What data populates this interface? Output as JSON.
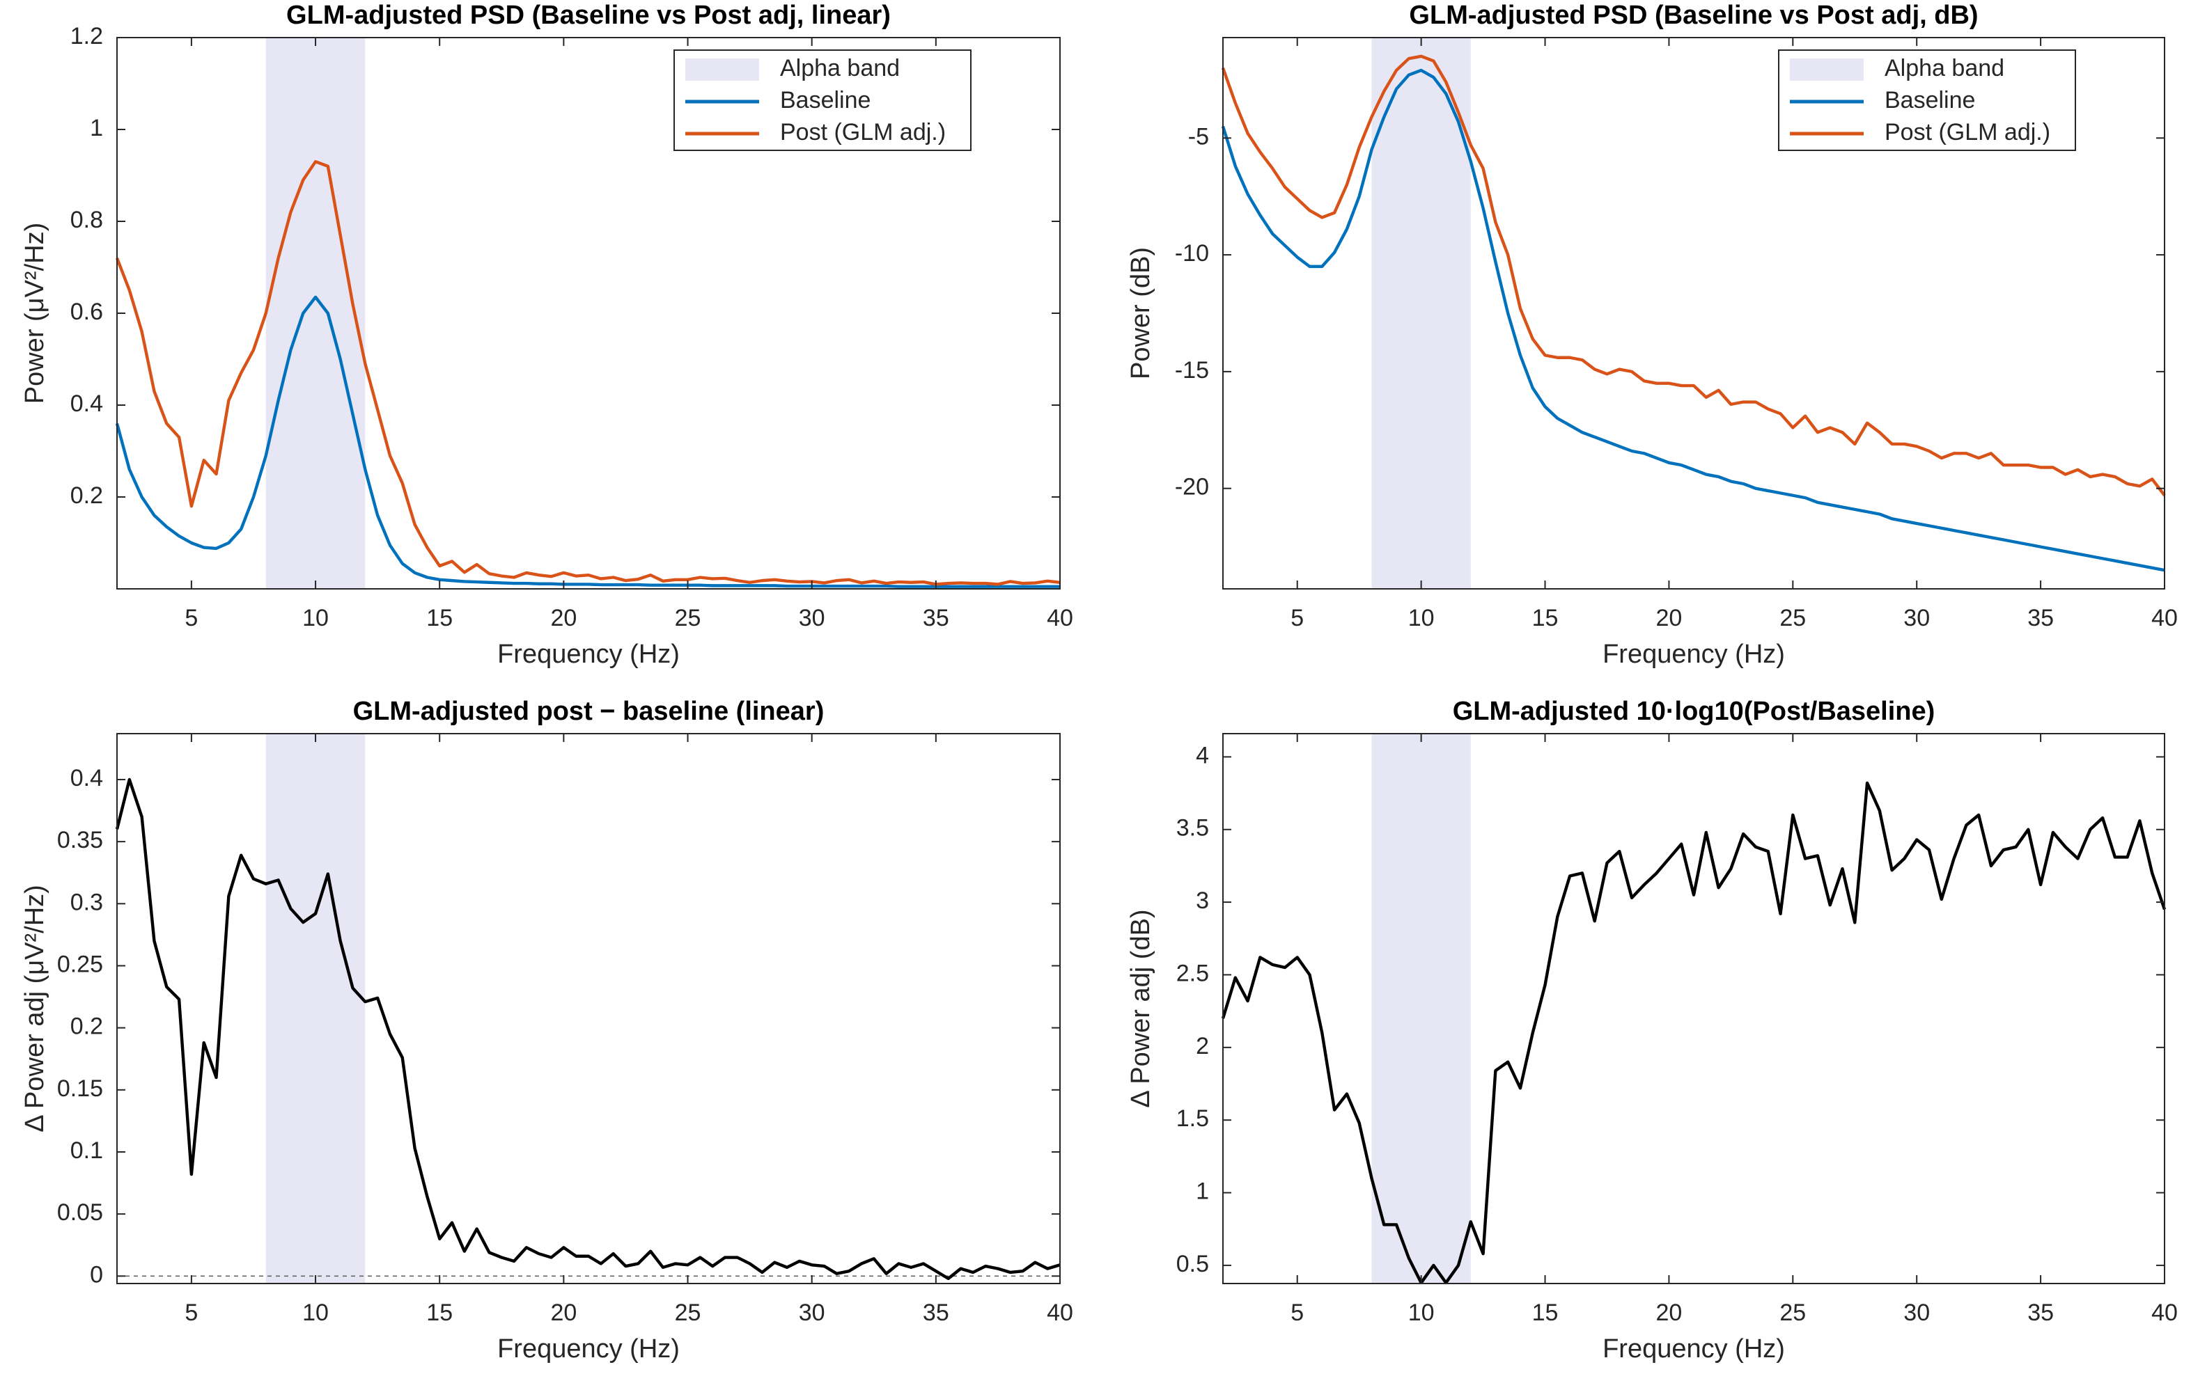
{
  "chart_data": [
    {
      "type": "line",
      "title": "GLM-adjusted PSD (Baseline vs Post adj, linear)",
      "xlabel": "Frequency (Hz)",
      "ylabel": "Power  (μV²/Hz)",
      "x": [
        2,
        2.5,
        3,
        3.5,
        4,
        4.5,
        5,
        5.5,
        6,
        6.5,
        7,
        7.5,
        8,
        8.5,
        9,
        9.5,
        10,
        10.5,
        11,
        11.5,
        12,
        12.5,
        13,
        13.5,
        14,
        14.5,
        15,
        15.5,
        16,
        16.5,
        17,
        17.5,
        18,
        18.5,
        19,
        19.5,
        20,
        20.5,
        21,
        21.5,
        22,
        22.5,
        23,
        23.5,
        24,
        24.5,
        25,
        25.5,
        26,
        26.5,
        27,
        27.5,
        28,
        28.5,
        29,
        29.5,
        30,
        30.5,
        31,
        31.5,
        32,
        32.5,
        33,
        33.5,
        34,
        34.5,
        35,
        35.5,
        36,
        36.5,
        37,
        37.5,
        38,
        38.5,
        39,
        39.5,
        40
      ],
      "series": [
        {
          "name": "Baseline",
          "color": "#0072bd",
          "values": [
            0.36,
            0.26,
            0.2,
            0.16,
            0.135,
            0.115,
            0.1,
            0.09,
            0.088,
            0.1,
            0.13,
            0.2,
            0.29,
            0.41,
            0.52,
            0.6,
            0.635,
            0.6,
            0.5,
            0.38,
            0.26,
            0.16,
            0.095,
            0.055,
            0.035,
            0.025,
            0.02,
            0.018,
            0.016,
            0.015,
            0.014,
            0.013,
            0.012,
            0.012,
            0.011,
            0.011,
            0.01,
            0.01,
            0.01,
            0.009,
            0.009,
            0.009,
            0.009,
            0.008,
            0.008,
            0.008,
            0.008,
            0.008,
            0.007,
            0.007,
            0.007,
            0.007,
            0.007,
            0.007,
            0.006,
            0.006,
            0.006,
            0.006,
            0.006,
            0.006,
            0.006,
            0.006,
            0.006,
            0.005,
            0.005,
            0.005,
            0.005,
            0.005,
            0.005,
            0.005,
            0.005,
            0.005,
            0.005,
            0.005,
            0.005,
            0.005,
            0.005
          ]
        },
        {
          "name": "Post (GLM adj.)",
          "color": "#d95319",
          "values": [
            0.72,
            0.65,
            0.56,
            0.43,
            0.36,
            0.33,
            0.18,
            0.28,
            0.25,
            0.41,
            0.47,
            0.52,
            0.6,
            0.72,
            0.82,
            0.89,
            0.93,
            0.92,
            0.77,
            0.62,
            0.49,
            0.39,
            0.29,
            0.23,
            0.14,
            0.09,
            0.05,
            0.06,
            0.036,
            0.053,
            0.033,
            0.028,
            0.025,
            0.035,
            0.03,
            0.027,
            0.035,
            0.028,
            0.03,
            0.022,
            0.025,
            0.018,
            0.021,
            0.03,
            0.017,
            0.02,
            0.02,
            0.025,
            0.022,
            0.023,
            0.018,
            0.014,
            0.018,
            0.02,
            0.017,
            0.015,
            0.016,
            0.013,
            0.018,
            0.02,
            0.013,
            0.017,
            0.012,
            0.015,
            0.014,
            0.015,
            0.01,
            0.012,
            0.013,
            0.012,
            0.012,
            0.01,
            0.016,
            0.012,
            0.013,
            0.017,
            0.014
          ]
        }
      ],
      "band": {
        "name": "Alpha band",
        "range": [
          8,
          12
        ],
        "color": "#e6e6f5"
      },
      "xlim": [
        2,
        40
      ],
      "xticks": [
        5,
        10,
        15,
        20,
        25,
        30,
        35,
        40
      ],
      "ylim": [
        0,
        1.2
      ],
      "yticks": [
        0.2,
        0.4,
        0.6,
        0.8,
        1,
        1.2
      ],
      "legend": "upper right"
    },
    {
      "type": "line",
      "title": "GLM-adjusted PSD (Baseline vs Post adj, dB)",
      "xlabel": "Frequency (Hz)",
      "ylabel": "Power (dB)",
      "x": [
        2,
        2.5,
        3,
        3.5,
        4,
        4.5,
        5,
        5.5,
        6,
        6.5,
        7,
        7.5,
        8,
        8.5,
        9,
        9.5,
        10,
        10.5,
        11,
        11.5,
        12,
        12.5,
        13,
        13.5,
        14,
        14.5,
        15,
        15.5,
        16,
        16.5,
        17,
        17.5,
        18,
        18.5,
        19,
        19.5,
        20,
        20.5,
        21,
        21.5,
        22,
        22.5,
        23,
        23.5,
        24,
        24.5,
        25,
        25.5,
        26,
        26.5,
        27,
        27.5,
        28,
        28.5,
        29,
        29.5,
        30,
        30.5,
        31,
        31.5,
        32,
        32.5,
        33,
        33.5,
        34,
        34.5,
        35,
        35.5,
        36,
        36.5,
        37,
        37.5,
        38,
        38.5,
        39,
        39.5,
        40
      ],
      "series": [
        {
          "name": "Baseline",
          "color": "#0072bd",
          "values": [
            -4.5,
            -6.2,
            -7.4,
            -8.3,
            -9.1,
            -9.6,
            -10.1,
            -10.5,
            -10.5,
            -9.9,
            -8.9,
            -7.5,
            -5.5,
            -4.1,
            -2.9,
            -2.3,
            -2.1,
            -2.4,
            -3.1,
            -4.3,
            -6,
            -8,
            -10.3,
            -12.5,
            -14.3,
            -15.7,
            -16.5,
            -17,
            -17.3,
            -17.6,
            -17.8,
            -18,
            -18.2,
            -18.4,
            -18.5,
            -18.7,
            -18.9,
            -19,
            -19.2,
            -19.4,
            -19.5,
            -19.7,
            -19.8,
            -20,
            -20.1,
            -20.2,
            -20.3,
            -20.4,
            -20.6,
            -20.7,
            -20.8,
            -20.9,
            -21,
            -21.1,
            -21.3,
            -21.4,
            -21.5,
            -21.6,
            -21.7,
            -21.8,
            -21.9,
            -22,
            -22.1,
            -22.2,
            -22.3,
            -22.4,
            -22.5,
            -22.6,
            -22.7,
            -22.8,
            -22.9,
            -23,
            -23.1,
            -23.2,
            -23.3,
            -23.4,
            -23.5
          ]
        },
        {
          "name": "Post (GLM adj.)",
          "color": "#d95319",
          "values": [
            -2,
            -3.5,
            -4.8,
            -5.6,
            -6.3,
            -7.1,
            -7.6,
            -8.1,
            -8.4,
            -8.2,
            -7,
            -5.4,
            -4.1,
            -3,
            -2.1,
            -1.6,
            -1.5,
            -1.7,
            -2.6,
            -3.9,
            -5.3,
            -6.3,
            -8.6,
            -10,
            -12.3,
            -13.6,
            -14.3,
            -14.4,
            -14.4,
            -14.5,
            -14.9,
            -15.1,
            -14.9,
            -15,
            -15.4,
            -15.5,
            -15.5,
            -15.6,
            -15.6,
            -16.1,
            -15.8,
            -16.4,
            -16.3,
            -16.3,
            -16.6,
            -16.8,
            -17.4,
            -16.9,
            -17.6,
            -17.4,
            -17.6,
            -18.1,
            -17.2,
            -17.6,
            -18.1,
            -18.1,
            -18.2,
            -18.4,
            -18.7,
            -18.5,
            -18.5,
            -18.7,
            -18.5,
            -19,
            -19,
            -19,
            -19.1,
            -19.1,
            -19.4,
            -19.2,
            -19.5,
            -19.4,
            -19.5,
            -19.8,
            -19.9,
            -19.6,
            -20.3
          ]
        }
      ],
      "band": {
        "name": "Alpha band",
        "range": [
          8,
          12
        ],
        "color": "#e6e6f5"
      },
      "xlim": [
        2,
        40
      ],
      "xticks": [
        5,
        10,
        15,
        20,
        25,
        30,
        35,
        40
      ],
      "ylim": [
        -24.3,
        -0.7
      ],
      "yticks": [
        -20,
        -15,
        -10,
        -5
      ],
      "legend": "upper right"
    },
    {
      "type": "line",
      "title": "GLM-adjusted post − baseline (linear)",
      "xlabel": "Frequency (Hz)",
      "ylabel": "Δ  Power  adj  (μV²/Hz)",
      "x": [
        2,
        2.5,
        3,
        3.5,
        4,
        4.5,
        5,
        5.5,
        6,
        6.5,
        7,
        7.5,
        8,
        8.5,
        9,
        9.5,
        10,
        10.5,
        11,
        11.5,
        12,
        12.5,
        13,
        13.5,
        14,
        14.5,
        15,
        15.5,
        16,
        16.5,
        17,
        17.5,
        18,
        18.5,
        19,
        19.5,
        20,
        20.5,
        21,
        21.5,
        22,
        22.5,
        23,
        23.5,
        24,
        24.5,
        25,
        25.5,
        26,
        26.5,
        27,
        27.5,
        28,
        28.5,
        29,
        29.5,
        30,
        30.5,
        31,
        31.5,
        32,
        32.5,
        33,
        33.5,
        34,
        34.5,
        35,
        35.5,
        36,
        36.5,
        37,
        37.5,
        38,
        38.5,
        39,
        39.5,
        40
      ],
      "series": [
        {
          "color": "#000000",
          "values": [
            0.36,
            0.4,
            0.37,
            0.27,
            0.233,
            0.223,
            0.082,
            0.188,
            0.16,
            0.306,
            0.339,
            0.32,
            0.316,
            0.319,
            0.296,
            0.285,
            0.292,
            0.324,
            0.27,
            0.232,
            0.221,
            0.224,
            0.195,
            0.176,
            0.103,
            0.064,
            0.03,
            0.043,
            0.02,
            0.038,
            0.019,
            0.015,
            0.012,
            0.023,
            0.018,
            0.015,
            0.023,
            0.016,
            0.016,
            0.01,
            0.018,
            0.008,
            0.01,
            0.02,
            0.007,
            0.01,
            0.009,
            0.015,
            0.008,
            0.015,
            0.015,
            0.01,
            0.003,
            0.011,
            0.007,
            0.012,
            0.009,
            0.008,
            0.002,
            0.004,
            0.01,
            0.014,
            0.002,
            0.01,
            0.007,
            0.01,
            0.004,
            -0.002,
            0.006,
            0.003,
            0.008,
            0.006,
            0.003,
            0.004,
            0.011,
            0.006,
            0.009
          ]
        }
      ],
      "band": {
        "range": [
          8,
          12
        ],
        "color": "#e6e6f5"
      },
      "hline": 0,
      "xlim": [
        2,
        40
      ],
      "xticks": [
        5,
        10,
        15,
        20,
        25,
        30,
        35,
        40
      ],
      "ylim": [
        -0.006,
        0.437
      ],
      "yticks": [
        0,
        0.05,
        0.1,
        0.15,
        0.2,
        0.25,
        0.3,
        0.35,
        0.4
      ]
    },
    {
      "type": "line",
      "title": "GLM-adjusted 10·log10(Post/Baseline)",
      "xlabel": "Frequency (Hz)",
      "ylabel": "Δ  Power  adj  (dB)",
      "x": [
        2,
        2.5,
        3,
        3.5,
        4,
        4.5,
        5,
        5.5,
        6,
        6.5,
        7,
        7.5,
        8,
        8.5,
        9,
        9.5,
        10,
        10.5,
        11,
        11.5,
        12,
        12.5,
        13,
        13.5,
        14,
        14.5,
        15,
        15.5,
        16,
        16.5,
        17,
        17.5,
        18,
        18.5,
        19,
        19.5,
        20,
        20.5,
        21,
        21.5,
        22,
        22.5,
        23,
        23.5,
        24,
        24.5,
        25,
        25.5,
        26,
        26.5,
        27,
        27.5,
        28,
        28.5,
        29,
        29.5,
        30,
        30.5,
        31,
        31.5,
        32,
        32.5,
        33,
        33.5,
        34,
        34.5,
        35,
        35.5,
        36,
        36.5,
        37,
        37.5,
        38,
        38.5,
        39,
        39.5,
        40
      ],
      "series": [
        {
          "color": "#000000",
          "values": [
            2.2,
            2.48,
            2.32,
            2.62,
            2.57,
            2.55,
            2.62,
            2.5,
            2.1,
            1.57,
            1.68,
            1.48,
            1.1,
            0.78,
            0.78,
            0.55,
            0.38,
            0.5,
            0.38,
            0.5,
            0.8,
            0.58,
            1.84,
            1.9,
            1.72,
            2.1,
            2.43,
            2.9,
            3.18,
            3.2,
            2.87,
            3.27,
            3.35,
            3.03,
            3.12,
            3.2,
            3.3,
            3.4,
            3.05,
            3.48,
            3.1,
            3.23,
            3.47,
            3.38,
            3.35,
            2.92,
            3.6,
            3.3,
            3.32,
            2.98,
            3.23,
            2.86,
            3.82,
            3.63,
            3.22,
            3.3,
            3.43,
            3.36,
            3.02,
            3.3,
            3.53,
            3.6,
            3.25,
            3.36,
            3.38,
            3.5,
            3.12,
            3.48,
            3.38,
            3.3,
            3.5,
            3.58,
            3.31,
            3.31,
            3.56,
            3.2,
            2.95
          ]
        }
      ],
      "band": {
        "range": [
          8,
          12
        ],
        "color": "#e6e6f5"
      },
      "xlim": [
        2,
        40
      ],
      "xticks": [
        5,
        10,
        15,
        20,
        25,
        30,
        35,
        40
      ],
      "ylim": [
        0.375,
        4.16
      ],
      "yticks": [
        0.5,
        1,
        1.5,
        2,
        2.5,
        3,
        3.5,
        4
      ]
    }
  ]
}
